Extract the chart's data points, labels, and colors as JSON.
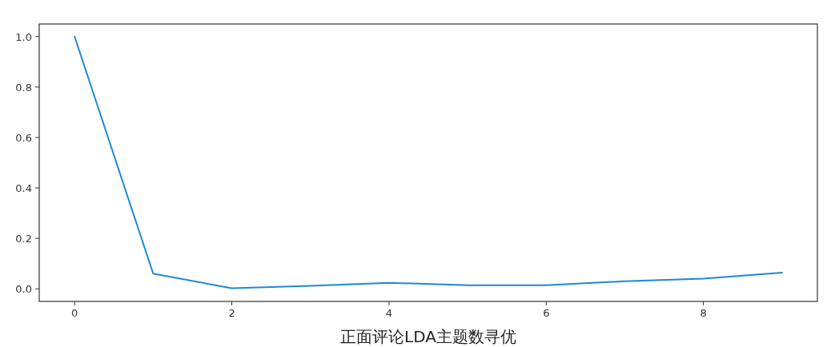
{
  "chart_data": {
    "type": "line",
    "xlabel": "正面评论LDA主题数寻优",
    "x": [
      0,
      1,
      2,
      3,
      4,
      5,
      6,
      7,
      8,
      9
    ],
    "series": [
      {
        "color": "#1f88d6",
        "values": [
          1.0,
          0.06,
          0.002,
          0.012,
          0.024,
          0.014,
          0.014,
          0.03,
          0.04,
          0.064
        ]
      }
    ],
    "xlim": [
      -0.45,
      9.45
    ],
    "ylim": [
      -0.05,
      1.05
    ],
    "xticks": [
      0,
      2,
      4,
      6,
      8
    ],
    "yticks": [
      {
        "value": 0,
        "label": "0.0"
      },
      {
        "value": 0.2,
        "label": "0.2"
      },
      {
        "value": 0.4,
        "label": "0.4"
      },
      {
        "value": 0.6,
        "label": "0.6"
      },
      {
        "value": 0.8,
        "label": "0.8"
      },
      {
        "value": 1.0,
        "label": "1.0"
      }
    ],
    "grid": false
  }
}
